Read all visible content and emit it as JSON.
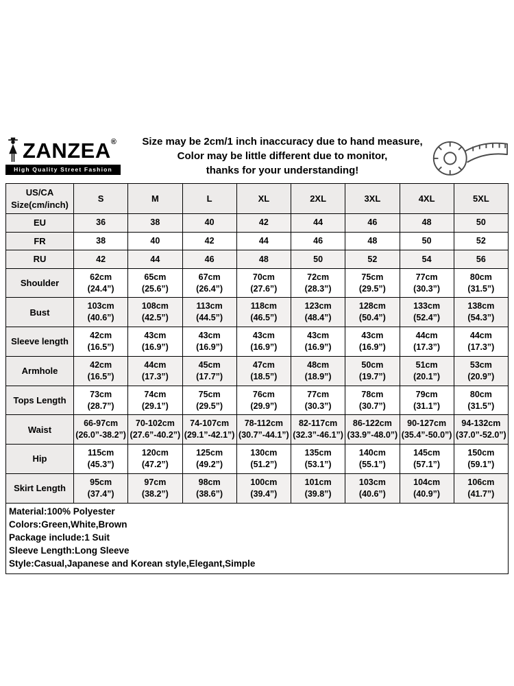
{
  "header": {
    "brand": "ZANZEA",
    "registered": "®",
    "tagline": "High Quality Street Fashion",
    "notice_lines": [
      "Size may be 2cm/1 inch inaccuracy due to hand measure,",
      "Color may be little different due to monitor,",
      "thanks for your understanding!"
    ],
    "icons": {
      "logo": "woman-silhouette-icon",
      "tape": "measuring-tape-icon"
    }
  },
  "size_table": {
    "corner_label": "US/CA\nSize(cm/inch)",
    "columns": [
      "S",
      "M",
      "L",
      "XL",
      "2XL",
      "3XL",
      "4XL",
      "5XL"
    ],
    "rows": [
      {
        "label": "EU",
        "values": [
          "36",
          "38",
          "40",
          "42",
          "44",
          "46",
          "48",
          "50"
        ]
      },
      {
        "label": "FR",
        "values": [
          "38",
          "40",
          "42",
          "44",
          "46",
          "48",
          "50",
          "52"
        ]
      },
      {
        "label": "RU",
        "values": [
          "42",
          "44",
          "46",
          "48",
          "50",
          "52",
          "54",
          "56"
        ]
      },
      {
        "label": "Shoulder",
        "values": [
          "62cm\n(24.4”)",
          "65cm\n(25.6”)",
          "67cm\n(26.4”)",
          "70cm\n(27.6”)",
          "72cm\n(28.3”)",
          "75cm\n(29.5”)",
          "77cm\n(30.3”)",
          "80cm\n(31.5”)"
        ]
      },
      {
        "label": "Bust",
        "values": [
          "103cm\n(40.6”)",
          "108cm\n(42.5”)",
          "113cm\n(44.5”)",
          "118cm\n(46.5”)",
          "123cm\n(48.4”)",
          "128cm\n(50.4”)",
          "133cm\n(52.4”)",
          "138cm\n(54.3”)"
        ]
      },
      {
        "label": "Sleeve length",
        "values": [
          "42cm\n(16.5”)",
          "43cm\n(16.9”)",
          "43cm\n(16.9”)",
          "43cm\n(16.9”)",
          "43cm\n(16.9”)",
          "43cm\n(16.9”)",
          "44cm\n(17.3”)",
          "44cm\n(17.3”)"
        ]
      },
      {
        "label": "Armhole",
        "values": [
          "42cm\n(16.5”)",
          "44cm\n(17.3”)",
          "45cm\n(17.7”)",
          "47cm\n(18.5”)",
          "48cm\n(18.9”)",
          "50cm\n(19.7”)",
          "51cm\n(20.1”)",
          "53cm\n(20.9”)"
        ]
      },
      {
        "label": "Tops Length",
        "values": [
          "73cm\n(28.7”)",
          "74cm\n(29.1”)",
          "75cm\n(29.5”)",
          "76cm\n(29.9”)",
          "77cm\n(30.3”)",
          "78cm\n(30.7”)",
          "79cm\n(31.1”)",
          "80cm\n(31.5”)"
        ]
      },
      {
        "label": "Waist",
        "values": [
          "66-97cm\n(26.0”-38.2”)",
          "70-102cm\n(27.6”-40.2”)",
          "74-107cm\n(29.1”-42.1”)",
          "78-112cm\n(30.7”-44.1”)",
          "82-117cm\n(32.3”-46.1”)",
          "86-122cm\n(33.9”-48.0”)",
          "90-127cm\n(35.4”-50.0”)",
          "94-132cm\n(37.0”-52.0”)"
        ]
      },
      {
        "label": "Hip",
        "values": [
          "115cm\n(45.3”)",
          "120cm\n(47.2”)",
          "125cm\n(49.2”)",
          "130cm\n(51.2”)",
          "135cm\n(53.1”)",
          "140cm\n(55.1”)",
          "145cm\n(57.1”)",
          "150cm\n(59.1”)"
        ]
      },
      {
        "label": "Skirt Length",
        "values": [
          "95cm\n(37.4”)",
          "97cm\n(38.2”)",
          "98cm\n(38.6”)",
          "100cm\n(39.4”)",
          "101cm\n(39.8”)",
          "103cm\n(40.6”)",
          "104cm\n(40.9”)",
          "106cm\n(41.7”)"
        ]
      }
    ]
  },
  "details": [
    "Material:100% Polyester",
    "Colors:Green,White,Brown",
    "Package include:1 Suit",
    "Sleeve Length:Long Sleeve",
    "Style:Casual,Japanese and Korean style,Elegant,Simple"
  ]
}
